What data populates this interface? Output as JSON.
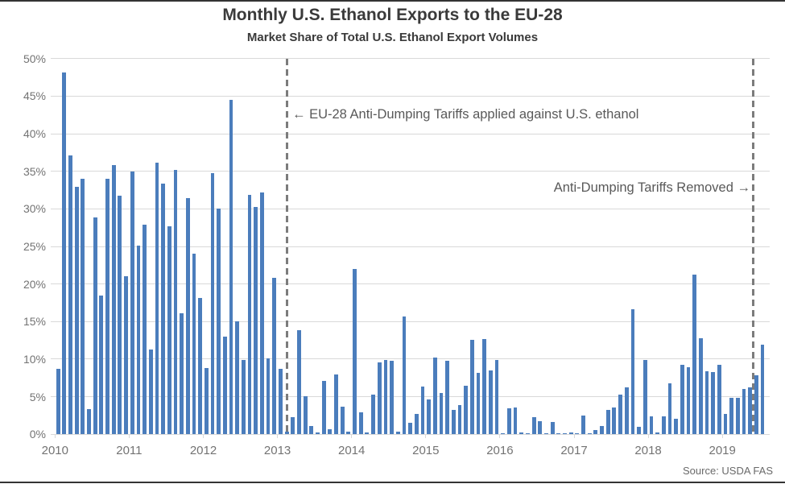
{
  "source": "Source: USDA FAS",
  "colors": {
    "bar": "#4b7dbc",
    "gridline": "#d9d9d9",
    "dashed_line": "#7c7c7c",
    "title_text": "#3a3a3a",
    "annotation_text": "#595959",
    "axis_text": "#737373",
    "page_rule": "#333333"
  },
  "chart_data": {
    "type": "bar",
    "title": "Monthly U.S. Ethanol Exports to the EU-28",
    "subtitle": "Market Share of Total U.S. Ethanol Export Volumes",
    "unit": "percent share of total U.S. ethanol export volume",
    "ylim": [
      0,
      50
    ],
    "y_tick_step": 5,
    "y_tick_labels": [
      "0%",
      "5%",
      "10%",
      "15%",
      "20%",
      "25%",
      "30%",
      "35%",
      "40%",
      "45%",
      "50%"
    ],
    "x_year_labels": [
      "2010",
      "2011",
      "2012",
      "2013",
      "2014",
      "2015",
      "2016",
      "2017",
      "2018",
      "2019"
    ],
    "grid": true,
    "legend": false,
    "annotations": {
      "applied": "← EU-28 Anti-Dumping Tariffs applied against U.S. ethanol",
      "removed": "Anti-Dumping Tariffs Removed →"
    },
    "years": [
      {
        "year": "2010",
        "values": [
          8.7,
          48.1,
          37.1,
          32.9,
          34.0,
          3.4,
          28.9,
          18.5,
          34.0,
          35.8,
          31.8,
          21.0
        ]
      },
      {
        "year": "2011",
        "values": [
          35.0,
          25.1,
          27.9,
          11.3,
          36.1,
          33.4,
          27.7,
          35.2,
          16.1,
          31.4,
          24.0,
          18.1
        ]
      },
      {
        "year": "2012",
        "values": [
          8.8,
          34.7,
          30.0,
          13.0,
          44.5,
          15.0,
          9.9,
          31.9,
          30.2,
          32.2,
          10.1,
          20.8
        ]
      },
      {
        "year": "2013",
        "values": [
          8.7,
          0.4,
          2.3,
          13.9,
          5.1,
          1.1,
          0.3,
          7.1,
          0.7,
          8.0,
          3.7,
          0.4
        ]
      },
      {
        "year": "2014",
        "values": [
          22.0,
          2.9,
          0.2,
          5.3,
          9.6,
          9.9,
          9.8,
          0.4,
          15.7,
          1.5,
          2.7,
          6.4
        ]
      },
      {
        "year": "2015",
        "values": [
          4.6,
          10.2,
          5.5,
          9.8,
          3.3,
          3.9,
          6.5,
          12.6,
          8.2,
          12.7,
          8.5,
          9.9
        ]
      },
      {
        "year": "2016",
        "values": [
          0.1,
          3.5,
          3.6,
          0.2,
          0.1,
          2.3,
          1.8,
          0.1,
          1.6,
          0.1,
          0.1,
          0.2
        ]
      },
      {
        "year": "2017",
        "values": [
          0.1,
          2.5,
          0.1,
          0.6,
          1.1,
          3.3,
          3.6,
          5.3,
          6.2,
          16.6,
          1.0,
          9.9
        ]
      },
      {
        "year": "2018",
        "values": [
          2.4,
          0.2,
          2.4,
          6.8,
          2.1,
          9.3,
          8.9,
          21.2,
          12.8,
          8.4,
          8.3,
          9.2
        ]
      },
      {
        "year": "2019",
        "values": [
          2.7,
          4.9,
          4.9,
          6.0,
          6.3,
          7.9,
          11.9
        ]
      }
    ],
    "events": [
      {
        "name": "tariffs-applied",
        "slot": 37.5
      },
      {
        "name": "tariffs-removed",
        "slot": 113
      }
    ]
  }
}
